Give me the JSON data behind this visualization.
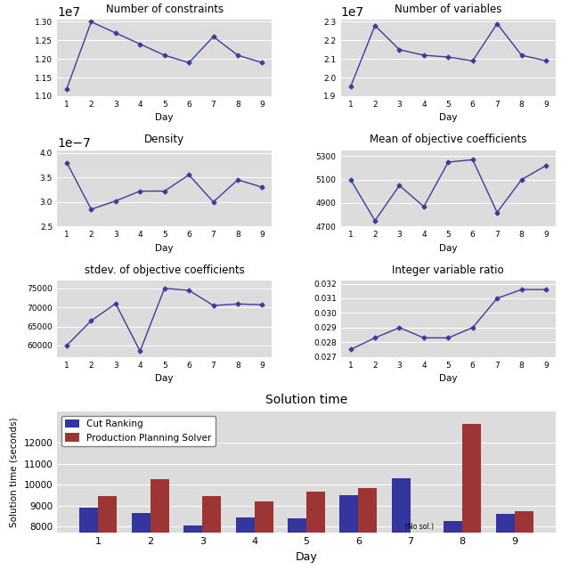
{
  "days": [
    1,
    2,
    3,
    4,
    5,
    6,
    7,
    8,
    9
  ],
  "num_constraints": [
    11200000.0,
    13000000.0,
    12700000.0,
    12400000.0,
    12100000.0,
    11900000.0,
    12600000.0,
    12100000.0,
    11900000.0
  ],
  "num_variables": [
    19500000.0,
    22800000.0,
    21500000.0,
    21200000.0,
    21100000.0,
    20900000.0,
    22900000.0,
    21200000.0,
    20900000.0
  ],
  "density": [
    3.8e-07,
    2.85e-07,
    3.02e-07,
    3.22e-07,
    3.22e-07,
    3.55e-07,
    3e-07,
    3.45e-07,
    3.3e-07
  ],
  "mean_obj_coef": [
    5100,
    4750,
    5050,
    4870,
    5250,
    5270,
    4820,
    5100,
    5220
  ],
  "stdev_obj_coef": [
    60000,
    66500,
    71000,
    58500,
    75000,
    74500,
    70500,
    70900,
    70700
  ],
  "int_var_ratio": [
    0.0275,
    0.0283,
    0.029,
    0.0283,
    0.0283,
    0.029,
    0.031,
    0.0316,
    0.0316
  ],
  "cut_ranking": [
    8900,
    8650,
    8050,
    8450,
    8400,
    9500,
    10300,
    8250,
    8600
  ],
  "prod_planning": [
    9450,
    10250,
    9450,
    9200,
    9650,
    9850,
    null,
    12900,
    8750
  ],
  "line_color": "#3c3c9c",
  "bar_color_blue": "#3535a0",
  "bar_color_red": "#9e3535",
  "title_constraints": "Number of constraints",
  "title_variables": "Number of variables",
  "title_density": "Density",
  "title_mean": "Mean of objective coefficients",
  "title_stdev": "stdev. of objective coefficients",
  "title_int_ratio": "Integer variable ratio",
  "title_solution": "Solution time",
  "ylabel_solution": "Solution time (seconds)",
  "xlabel": "Day",
  "legend_blue": "Cut Ranking",
  "legend_red": "Production Planning Solver",
  "no_sol_text": "(No sol.)",
  "bg_color": "#dcdcdc"
}
